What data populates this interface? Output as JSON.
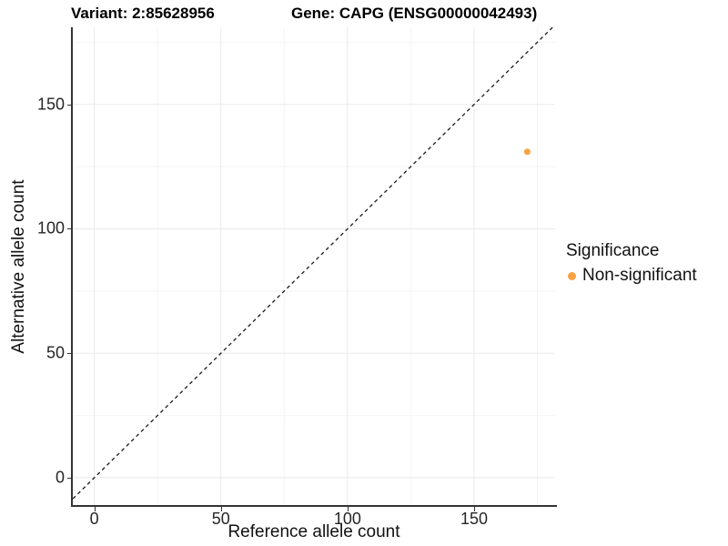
{
  "title": {
    "variant": "Variant: 2:85628956",
    "gene": "Gene: CAPG (ENSG00000042493)"
  },
  "x_axis": {
    "label": "Reference allele count"
  },
  "y_axis": {
    "label": "Alternative allele count"
  },
  "legend": {
    "title": "Significance",
    "items": [
      {
        "label": "Non-significant",
        "color": "#F9A242"
      }
    ]
  },
  "chart_data": {
    "type": "scatter",
    "title": "Variant: 2:85628956 | Gene: CAPG (ENSG00000042493)",
    "xlabel": "Reference allele count",
    "ylabel": "Alternative allele count",
    "xlim": [
      -8.5,
      182
    ],
    "ylim": [
      -11,
      181
    ],
    "x_ticks": [
      0,
      50,
      100,
      150
    ],
    "y_ticks": [
      0,
      50,
      100,
      150
    ],
    "x_minor_ticks": [
      25,
      75,
      125,
      175
    ],
    "y_minor_ticks": [
      25,
      75,
      125,
      175
    ],
    "grid": true,
    "legend_position": "right",
    "series": [
      {
        "name": "Non-significant",
        "color": "#F9A242",
        "points": [
          {
            "x": 171,
            "y": 131
          }
        ],
        "point_radius": 3.5
      }
    ],
    "reference_line": {
      "type": "identity y=x",
      "style": "dashed",
      "color": "#1a1a1a"
    }
  },
  "colors": {
    "background": "#FFFFFF",
    "axis_line": "#333333",
    "tick_text": "#262626",
    "grid_major": "#E9E9E9",
    "grid_minor": "#F4F4F4",
    "point": "#F9A242"
  }
}
